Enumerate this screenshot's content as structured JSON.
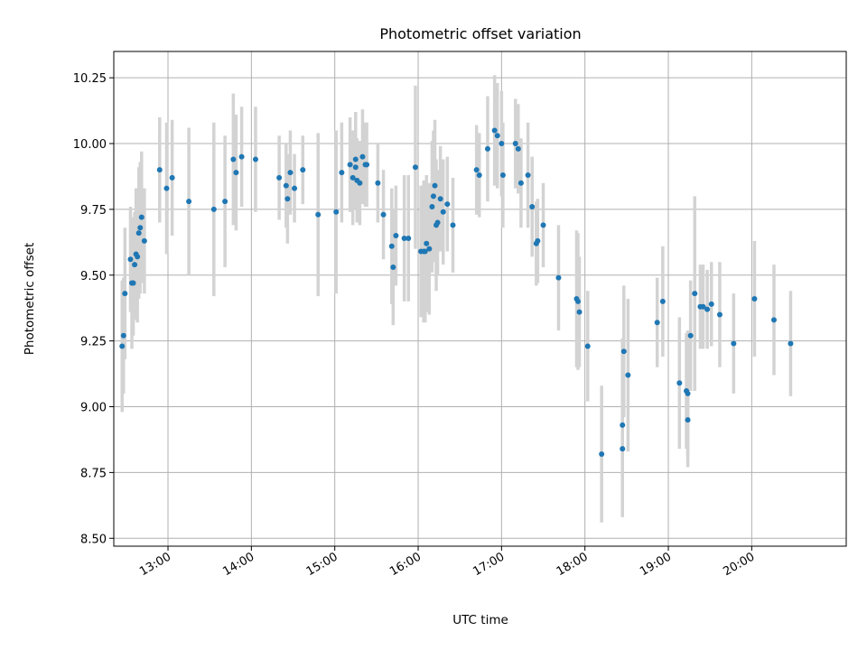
{
  "chart_data": {
    "type": "scatter",
    "title": "Photometric offset variation",
    "xlabel": "UTC time",
    "ylabel": "Photometric offset",
    "xlim": [
      "12:21",
      "21:08"
    ],
    "ylim": [
      8.47,
      10.35
    ],
    "xticks": [
      "13:00",
      "14:00",
      "15:00",
      "16:00",
      "17:00",
      "18:00",
      "19:00",
      "20:00"
    ],
    "yticks": [
      8.5,
      8.75,
      9.0,
      9.25,
      9.5,
      9.75,
      10.0,
      10.25
    ],
    "ytick_labels": [
      "8.50",
      "8.75",
      "9.00",
      "9.25",
      "9.50",
      "9.75",
      "10.00",
      "10.25"
    ],
    "grid": true,
    "colors": {
      "points": "#1f77b4",
      "errorbars": "#d3d3d3",
      "grid": "#b0b0b0"
    },
    "points": [
      {
        "t": "12:27",
        "y": 9.23,
        "err": 0.25
      },
      {
        "t": "12:28",
        "y": 9.27,
        "err": 0.22
      },
      {
        "t": "12:29",
        "y": 9.43,
        "err": 0.25
      },
      {
        "t": "12:33",
        "y": 9.56,
        "err": 0.2
      },
      {
        "t": "12:34",
        "y": 9.47,
        "err": 0.25
      },
      {
        "t": "12:35",
        "y": 9.47,
        "err": 0.2
      },
      {
        "t": "12:36",
        "y": 9.54,
        "err": 0.2
      },
      {
        "t": "12:37",
        "y": 9.58,
        "err": 0.25
      },
      {
        "t": "12:38",
        "y": 9.57,
        "err": 0.25
      },
      {
        "t": "12:39",
        "y": 9.66,
        "err": 0.25
      },
      {
        "t": "12:40",
        "y": 9.68,
        "err": 0.25
      },
      {
        "t": "12:41",
        "y": 9.72,
        "err": 0.25
      },
      {
        "t": "12:43",
        "y": 9.63,
        "err": 0.2
      },
      {
        "t": "12:54",
        "y": 9.9,
        "err": 0.2
      },
      {
        "t": "12:59",
        "y": 9.83,
        "err": 0.25
      },
      {
        "t": "13:03",
        "y": 9.87,
        "err": 0.22
      },
      {
        "t": "13:15",
        "y": 9.78,
        "err": 0.28
      },
      {
        "t": "13:33",
        "y": 9.75,
        "err": 0.33
      },
      {
        "t": "13:41",
        "y": 9.78,
        "err": 0.25
      },
      {
        "t": "13:47",
        "y": 9.94,
        "err": 0.25
      },
      {
        "t": "13:49",
        "y": 9.89,
        "err": 0.22
      },
      {
        "t": "13:53",
        "y": 9.95,
        "err": 0.19
      },
      {
        "t": "14:03",
        "y": 9.94,
        "err": 0.2
      },
      {
        "t": "14:20",
        "y": 9.87,
        "err": 0.16
      },
      {
        "t": "14:25",
        "y": 9.84,
        "err": 0.16
      },
      {
        "t": "14:26",
        "y": 9.79,
        "err": 0.17
      },
      {
        "t": "14:28",
        "y": 9.89,
        "err": 0.16
      },
      {
        "t": "14:31",
        "y": 9.83,
        "err": 0.13
      },
      {
        "t": "14:37",
        "y": 9.9,
        "err": 0.13
      },
      {
        "t": "14:48",
        "y": 9.73,
        "err": 0.31
      },
      {
        "t": "15:01",
        "y": 9.74,
        "err": 0.31
      },
      {
        "t": "15:05",
        "y": 9.89,
        "err": 0.19
      },
      {
        "t": "15:11",
        "y": 9.92,
        "err": 0.18
      },
      {
        "t": "15:13",
        "y": 9.87,
        "err": 0.18
      },
      {
        "t": "15:15",
        "y": 9.94,
        "err": 0.18
      },
      {
        "t": "15:15",
        "y": 9.91,
        "err": 0.16
      },
      {
        "t": "15:16",
        "y": 9.86,
        "err": 0.16
      },
      {
        "t": "15:18",
        "y": 9.85,
        "err": 0.16
      },
      {
        "t": "15:20",
        "y": 9.95,
        "err": 0.18
      },
      {
        "t": "15:22",
        "y": 9.92,
        "err": 0.16
      },
      {
        "t": "15:23",
        "y": 9.92,
        "err": 0.16
      },
      {
        "t": "15:31",
        "y": 9.85,
        "err": 0.15
      },
      {
        "t": "15:35",
        "y": 9.73,
        "err": 0.17
      },
      {
        "t": "15:41",
        "y": 9.61,
        "err": 0.22
      },
      {
        "t": "15:42",
        "y": 9.53,
        "err": 0.22
      },
      {
        "t": "15:44",
        "y": 9.65,
        "err": 0.19
      },
      {
        "t": "15:50",
        "y": 9.64,
        "err": 0.24
      },
      {
        "t": "15:53",
        "y": 9.64,
        "err": 0.24
      },
      {
        "t": "15:58",
        "y": 9.91,
        "err": 0.31
      },
      {
        "t": "16:02",
        "y": 9.59,
        "err": 0.25
      },
      {
        "t": "16:04",
        "y": 9.59,
        "err": 0.27
      },
      {
        "t": "16:05",
        "y": 9.59,
        "err": 0.27
      },
      {
        "t": "16:06",
        "y": 9.62,
        "err": 0.26
      },
      {
        "t": "16:08",
        "y": 9.6,
        "err": 0.25
      },
      {
        "t": "16:10",
        "y": 9.76,
        "err": 0.25
      },
      {
        "t": "16:11",
        "y": 9.8,
        "err": 0.25
      },
      {
        "t": "16:12",
        "y": 9.84,
        "err": 0.25
      },
      {
        "t": "16:13",
        "y": 9.69,
        "err": 0.25
      },
      {
        "t": "16:14",
        "y": 9.7,
        "err": 0.2
      },
      {
        "t": "16:16",
        "y": 9.79,
        "err": 0.2
      },
      {
        "t": "16:18",
        "y": 9.74,
        "err": 0.2
      },
      {
        "t": "16:21",
        "y": 9.77,
        "err": 0.18
      },
      {
        "t": "16:25",
        "y": 9.69,
        "err": 0.18
      },
      {
        "t": "16:42",
        "y": 9.9,
        "err": 0.17
      },
      {
        "t": "16:44",
        "y": 9.88,
        "err": 0.16
      },
      {
        "t": "16:50",
        "y": 9.98,
        "err": 0.2
      },
      {
        "t": "16:55",
        "y": 10.05,
        "err": 0.21
      },
      {
        "t": "16:57",
        "y": 10.03,
        "err": 0.2
      },
      {
        "t": "17:00",
        "y": 10.0,
        "err": 0.2
      },
      {
        "t": "17:01",
        "y": 9.88,
        "err": 0.2
      },
      {
        "t": "17:10",
        "y": 10.0,
        "err": 0.17
      },
      {
        "t": "17:12",
        "y": 9.98,
        "err": 0.17
      },
      {
        "t": "17:14",
        "y": 9.85,
        "err": 0.17
      },
      {
        "t": "17:19",
        "y": 9.88,
        "err": 0.2
      },
      {
        "t": "17:22",
        "y": 9.76,
        "err": 0.19
      },
      {
        "t": "17:25",
        "y": 9.62,
        "err": 0.16
      },
      {
        "t": "17:26",
        "y": 9.63,
        "err": 0.16
      },
      {
        "t": "17:30",
        "y": 9.69,
        "err": 0.16
      },
      {
        "t": "17:41",
        "y": 9.49,
        "err": 0.2
      },
      {
        "t": "17:54",
        "y": 9.41,
        "err": 0.26
      },
      {
        "t": "17:55",
        "y": 9.4,
        "err": 0.26
      },
      {
        "t": "17:56",
        "y": 9.36,
        "err": 0.21
      },
      {
        "t": "18:02",
        "y": 9.23,
        "err": 0.21
      },
      {
        "t": "18:12",
        "y": 8.82,
        "err": 0.26
      },
      {
        "t": "18:27",
        "y": 8.84,
        "err": 0.26
      },
      {
        "t": "18:27",
        "y": 8.93,
        "err": 0.33
      },
      {
        "t": "18:28",
        "y": 9.21,
        "err": 0.25
      },
      {
        "t": "18:31",
        "y": 9.12,
        "err": 0.29
      },
      {
        "t": "18:52",
        "y": 9.32,
        "err": 0.17
      },
      {
        "t": "18:56",
        "y": 9.4,
        "err": 0.21
      },
      {
        "t": "19:08",
        "y": 9.09,
        "err": 0.25
      },
      {
        "t": "19:13",
        "y": 9.06,
        "err": 0.22
      },
      {
        "t": "19:14",
        "y": 9.05,
        "err": 0.24
      },
      {
        "t": "19:14",
        "y": 8.95,
        "err": 0.18
      },
      {
        "t": "19:16",
        "y": 9.27,
        "err": 0.21
      },
      {
        "t": "19:19",
        "y": 9.43,
        "err": 0.37
      },
      {
        "t": "19:23",
        "y": 9.38,
        "err": 0.16
      },
      {
        "t": "19:25",
        "y": 9.38,
        "err": 0.16
      },
      {
        "t": "19:28",
        "y": 9.37,
        "err": 0.15
      },
      {
        "t": "19:31",
        "y": 9.39,
        "err": 0.16
      },
      {
        "t": "19:37",
        "y": 9.35,
        "err": 0.2
      },
      {
        "t": "19:47",
        "y": 9.24,
        "err": 0.19
      },
      {
        "t": "20:02",
        "y": 9.41,
        "err": 0.22
      },
      {
        "t": "20:16",
        "y": 9.33,
        "err": 0.21
      },
      {
        "t": "20:28",
        "y": 9.24,
        "err": 0.2
      }
    ]
  }
}
